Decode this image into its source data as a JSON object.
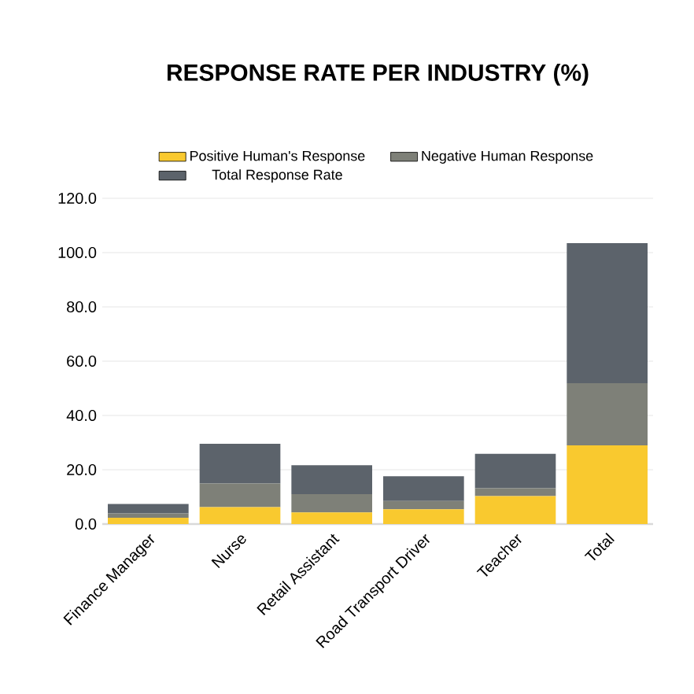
{
  "chart_data": {
    "type": "bar",
    "title": "RESPONSE RATE PER INDUSTRY (%)",
    "stacked": true,
    "categories": [
      "Finance Manager",
      "Nurse",
      "Retail Assistant",
      "Road Transport Driver",
      "Teacher",
      "Total"
    ],
    "series": [
      {
        "name": "Positive Human's Response",
        "color": "#f9c92f",
        "values": [
          2.3,
          6.2,
          4.3,
          5.4,
          10.3,
          29.0
        ]
      },
      {
        "name": "Negative Human Response",
        "color": "#7e8078",
        "values": [
          1.6,
          8.7,
          6.7,
          3.1,
          2.9,
          22.9
        ]
      },
      {
        "name": "Total Response Rate",
        "color": "#5c636b",
        "values": [
          3.5,
          14.7,
          10.7,
          9.1,
          12.7,
          51.6
        ]
      }
    ],
    "ylim": [
      0,
      120
    ],
    "yticks": [
      {
        "value": 0,
        "label": "0.0"
      },
      {
        "value": 20,
        "label": "20.0"
      },
      {
        "value": 40,
        "label": "40.0"
      },
      {
        "value": 60,
        "label": "60.0"
      },
      {
        "value": 80,
        "label": "80.0"
      },
      {
        "value": 100,
        "label": "100.0"
      },
      {
        "value": 120,
        "label": "120.0"
      }
    ],
    "grid": "y",
    "legend": "top"
  }
}
